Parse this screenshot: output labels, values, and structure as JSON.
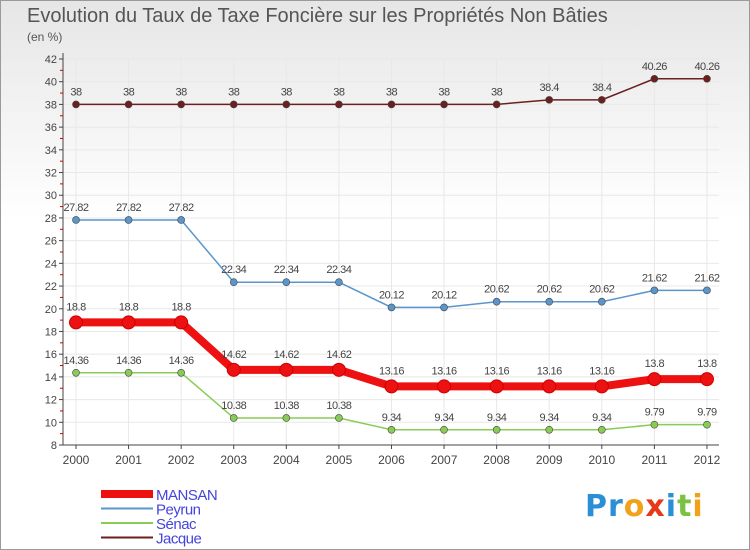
{
  "chart_data": {
    "type": "line",
    "title": "Evolution du Taux de Taxe Foncière sur les Propriétés Non Bâties",
    "subtitle": "(en %)",
    "x": [
      "2000",
      "2001",
      "2002",
      "2003",
      "2004",
      "2005",
      "2006",
      "2007",
      "2008",
      "2009",
      "2010",
      "2011",
      "2012"
    ],
    "ylim": [
      8,
      42
    ],
    "yticks": [
      8,
      10,
      12,
      14,
      16,
      18,
      20,
      22,
      24,
      26,
      28,
      30,
      32,
      34,
      36,
      38,
      40,
      42
    ],
    "series": [
      {
        "name": "Jacque",
        "color": "#6b1f1f",
        "values": [
          38,
          38,
          38,
          38,
          38,
          38,
          38,
          38,
          38,
          38.4,
          38.4,
          40.26,
          40.26
        ],
        "labels": [
          "38",
          "38",
          "38",
          "38",
          "38",
          "38",
          "38",
          "38",
          "38",
          "38.4",
          "38.4",
          "40.26",
          "40.26"
        ]
      },
      {
        "name": "Peyrun",
        "color": "#5a96cc",
        "values": [
          27.82,
          27.82,
          27.82,
          22.34,
          22.34,
          22.34,
          20.12,
          20.12,
          20.62,
          20.62,
          20.62,
          21.62,
          21.62
        ],
        "labels": [
          "27.82",
          "27.82",
          "27.82",
          "22.34",
          "22.34",
          "22.34",
          "20.12",
          "20.12",
          "20.62",
          "20.62",
          "20.62",
          "21.62",
          "21.62"
        ]
      },
      {
        "name": "MANSAN",
        "color": "#ee1111",
        "values": [
          18.8,
          18.8,
          18.8,
          14.62,
          14.62,
          14.62,
          13.16,
          13.16,
          13.16,
          13.16,
          13.16,
          13.8,
          13.8
        ],
        "labels": [
          "18.8",
          "18.8",
          "18.8",
          "14.62",
          "14.62",
          "14.62",
          "13.16",
          "13.16",
          "13.16",
          "13.16",
          "13.16",
          "13.8",
          "13.8"
        ]
      },
      {
        "name": "Sénac",
        "color": "#88cc55",
        "values": [
          14.36,
          14.36,
          14.36,
          10.38,
          10.38,
          10.38,
          9.34,
          9.34,
          9.34,
          9.34,
          9.34,
          9.79,
          9.79
        ],
        "labels": [
          "14.36",
          "14.36",
          "14.36",
          "10.38",
          "10.38",
          "10.38",
          "9.34",
          "9.34",
          "9.34",
          "9.34",
          "9.34",
          "9.79",
          "9.79"
        ]
      }
    ],
    "legend": [
      "MANSAN",
      "Peyrun",
      "Sénac",
      "Jacque"
    ],
    "legend_position": "bottom-left"
  },
  "brand": {
    "p1": "Pr",
    "p2": "o",
    "p3": "x",
    "p4": "i",
    "p5": "t",
    "p6": "i"
  },
  "colors": {
    "axis": "#444444",
    "grid": "#e8e8e8",
    "tick_red": "#cc0000"
  }
}
